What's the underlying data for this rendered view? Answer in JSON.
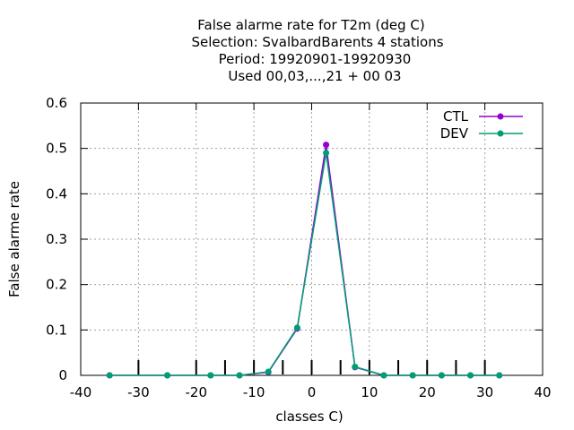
{
  "chart_data": {
    "type": "line",
    "title_lines": [
      "False alarme rate  for T2m (deg C)",
      "Selection: SvalbardBarents       4 stations",
      "Period: 19920901-19920930",
      "Used  00,03,...,21  + 00 03"
    ],
    "xlabel": "classes C)",
    "ylabel": "False alarme rate",
    "xlim": [
      -40,
      40
    ],
    "ylim": [
      0,
      0.6
    ],
    "xticks": [
      -40,
      -30,
      -20,
      -10,
      0,
      10,
      20,
      30,
      40
    ],
    "yticks": [
      0,
      0.1,
      0.2,
      0.3,
      0.4,
      0.5,
      0.6
    ],
    "class_markers": [
      -30,
      -20,
      -15,
      -10,
      -5,
      0,
      5,
      10,
      15,
      20,
      25,
      30
    ],
    "grid": true,
    "legend_position": "top-right",
    "series": [
      {
        "name": "CTL",
        "color": "#9400d3",
        "marker": "circle",
        "x": [
          -35,
          -25,
          -17.5,
          -12.5,
          -7.5,
          -2.5,
          2.5,
          7.5,
          12.5,
          17.5,
          22.5,
          27.5,
          32.5
        ],
        "y": [
          0,
          0,
          0,
          0,
          0.007,
          0.103,
          0.508,
          0.018,
          0,
          0,
          0,
          0,
          0
        ]
      },
      {
        "name": "DEV",
        "color": "#009e73",
        "marker": "circle",
        "x": [
          -35,
          -25,
          -17.5,
          -12.5,
          -7.5,
          -2.5,
          2.5,
          7.5,
          12.5,
          17.5,
          22.5,
          27.5,
          32.5
        ],
        "y": [
          0,
          0,
          0,
          0,
          0.008,
          0.105,
          0.49,
          0.019,
          0,
          0,
          0,
          0,
          0
        ]
      }
    ]
  }
}
